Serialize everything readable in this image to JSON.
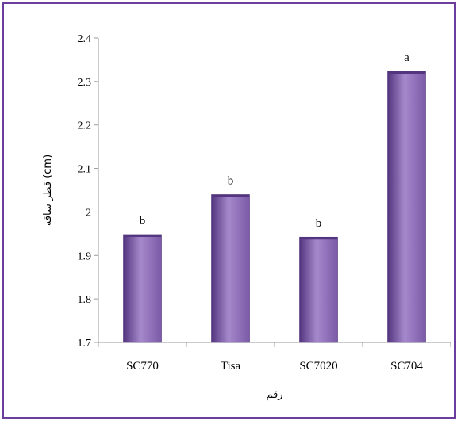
{
  "chart_data": {
    "type": "bar",
    "title": "",
    "xlabel": "رقم",
    "ylabel": "قطر ساقه (cm)",
    "categories": [
      "SC770",
      "Tisa",
      "SC7020",
      "SC704"
    ],
    "values": [
      1.948,
      2.04,
      1.942,
      2.323
    ],
    "data_labels": [
      "b",
      "b",
      "b",
      "a"
    ],
    "ylim": [
      1.7,
      2.4
    ],
    "yticks": [
      "1.7",
      "1.8",
      "1.9",
      "2",
      "2.1",
      "2.2",
      "2.3",
      "2.4"
    ],
    "grid": false,
    "legend": "none",
    "colors": {
      "bar": "#7b5aa6",
      "bar_light": "#a688cc",
      "bar_dark": "#53357f",
      "frame": "#6a3d9e",
      "axis": "#9a9a9a"
    }
  }
}
